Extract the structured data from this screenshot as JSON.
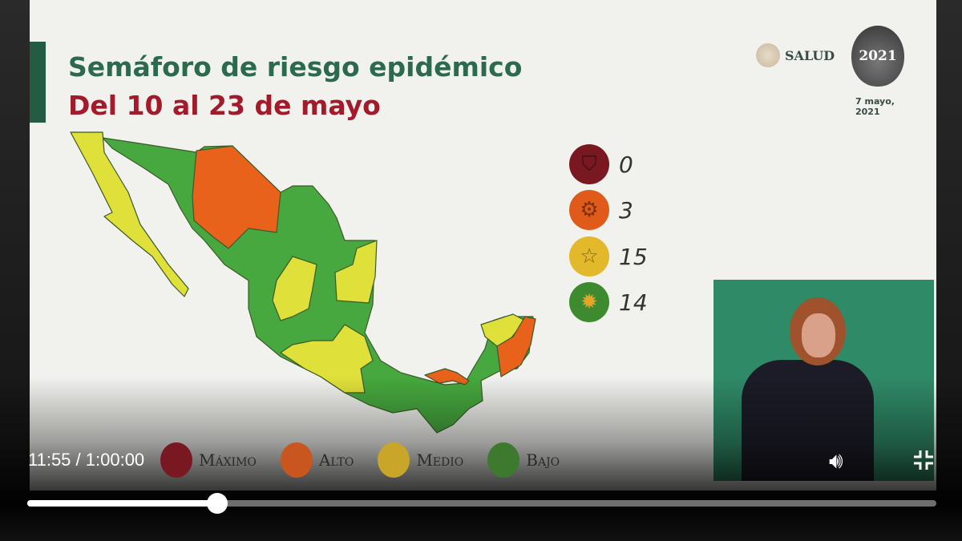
{
  "slide": {
    "title": "Semáforo de riesgo epidémico",
    "subtitle": "Del 10 al 23 de mayo",
    "salud_logo": "SALUD",
    "logo_2021": "2021",
    "date": "7 mayo, 2021",
    "legend": [
      {
        "level": "Máximo",
        "icon": "shield-icon",
        "color": "#7a1822",
        "count": "0"
      },
      {
        "level": "Alto",
        "icon": "gear-icon",
        "color": "#e05a1a",
        "count": "3"
      },
      {
        "level": "Medio",
        "icon": "star-icon",
        "color": "#e3b82a",
        "count": "15"
      },
      {
        "level": "Bajo",
        "icon": "sun-icon",
        "color": "#3d8a2f",
        "count": "14"
      }
    ],
    "bottom_legend": [
      "Máximo",
      "Alto",
      "Medio",
      "Bajo"
    ],
    "map_colors": {
      "bajo": "#46a83e",
      "medio": "#dfe03a",
      "alto": "#e8621b"
    }
  },
  "player": {
    "current_time": "11:55",
    "separator": " / ",
    "duration": "1:00:00",
    "progress_percent": 19.9,
    "volume_icon": "volume-icon",
    "exit_fullscreen_icon": "exit-fullscreen-icon"
  }
}
